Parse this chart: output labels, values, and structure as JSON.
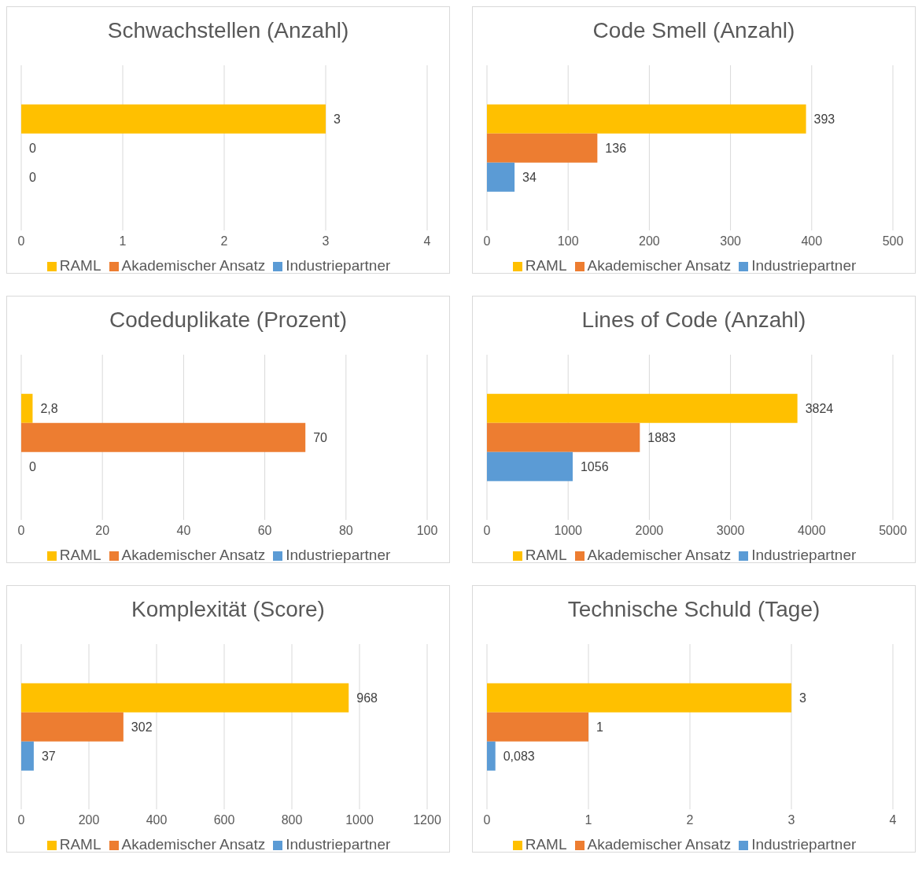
{
  "chart_data": [
    {
      "type": "bar",
      "orientation": "horizontal",
      "title": "Schwachstellen (Anzahl)",
      "categories": [
        null
      ],
      "series": [
        {
          "name": "RAML",
          "color": "#ffc000",
          "values": [
            3
          ],
          "value_labels": [
            "3"
          ]
        },
        {
          "name": "Akademischer Ansatz",
          "color": "#ed7d31",
          "values": [
            0
          ],
          "value_labels": [
            "0"
          ]
        },
        {
          "name": "Industriepartner",
          "color": "#5b9bd5",
          "values": [
            0
          ],
          "value_labels": [
            "0"
          ]
        }
      ],
      "xlim": [
        0,
        4
      ],
      "xticks": [
        0,
        1,
        2,
        3,
        4
      ],
      "grid": "x",
      "legend": "bottom",
      "tick_labels": "x"
    },
    {
      "type": "bar",
      "orientation": "horizontal",
      "title": "Code Smell (Anzahl)",
      "categories": [
        null
      ],
      "series": [
        {
          "name": "RAML",
          "color": "#ffc000",
          "values": [
            393
          ],
          "value_labels": [
            "393"
          ]
        },
        {
          "name": "Akademischer Ansatz",
          "color": "#ed7d31",
          "values": [
            136
          ],
          "value_labels": [
            "136"
          ]
        },
        {
          "name": "Industriepartner",
          "color": "#5b9bd5",
          "values": [
            34
          ],
          "value_labels": [
            "34"
          ]
        }
      ],
      "xlim": [
        0,
        500
      ],
      "xticks": [
        0,
        100,
        200,
        300,
        400,
        500
      ],
      "grid": "x",
      "legend": "bottom",
      "tick_labels": "x"
    },
    {
      "type": "bar",
      "orientation": "horizontal",
      "title": "Codeduplikate (Prozent)",
      "categories": [
        null
      ],
      "series": [
        {
          "name": "RAML",
          "color": "#ffc000",
          "values": [
            2.8
          ],
          "value_labels": [
            "2,8"
          ]
        },
        {
          "name": "Akademischer Ansatz",
          "color": "#ed7d31",
          "values": [
            70
          ],
          "value_labels": [
            "70"
          ]
        },
        {
          "name": "Industriepartner",
          "color": "#5b9bd5",
          "values": [
            0
          ],
          "value_labels": [
            "0"
          ]
        }
      ],
      "xlim": [
        0,
        100
      ],
      "xticks": [
        0,
        20,
        40,
        60,
        80,
        100
      ],
      "grid": "x",
      "legend": "bottom",
      "tick_labels": "x"
    },
    {
      "type": "bar",
      "orientation": "horizontal",
      "title": "Lines of Code (Anzahl)",
      "categories": [
        null
      ],
      "series": [
        {
          "name": "RAML",
          "color": "#ffc000",
          "values": [
            3824
          ],
          "value_labels": [
            "3824"
          ]
        },
        {
          "name": "Akademischer Ansatz",
          "color": "#ed7d31",
          "values": [
            1883
          ],
          "value_labels": [
            "1883"
          ]
        },
        {
          "name": "Industriepartner",
          "color": "#5b9bd5",
          "values": [
            1056
          ],
          "value_labels": [
            "1056"
          ]
        }
      ],
      "xlim": [
        0,
        5000
      ],
      "xticks": [
        0,
        1000,
        2000,
        3000,
        4000,
        5000
      ],
      "grid": "x",
      "legend": "bottom",
      "tick_labels": "x"
    },
    {
      "type": "bar",
      "orientation": "horizontal",
      "title": "Komplexität (Score)",
      "categories": [
        null
      ],
      "series": [
        {
          "name": "RAML",
          "color": "#ffc000",
          "values": [
            968
          ],
          "value_labels": [
            "968"
          ]
        },
        {
          "name": "Akademischer Ansatz",
          "color": "#ed7d31",
          "values": [
            302
          ],
          "value_labels": [
            "302"
          ]
        },
        {
          "name": "Industriepartner",
          "color": "#5b9bd5",
          "values": [
            37
          ],
          "value_labels": [
            "37"
          ]
        }
      ],
      "xlim": [
        0,
        1200
      ],
      "xticks": [
        0,
        200,
        400,
        600,
        800,
        1000,
        1200
      ],
      "grid": "x",
      "legend": "bottom",
      "tick_labels": "x"
    },
    {
      "type": "bar",
      "orientation": "horizontal",
      "title": "Technische Schuld (Tage)",
      "categories": [
        null
      ],
      "series": [
        {
          "name": "RAML",
          "color": "#ffc000",
          "values": [
            3
          ],
          "value_labels": [
            "3"
          ]
        },
        {
          "name": "Akademischer Ansatz",
          "color": "#ed7d31",
          "values": [
            1
          ],
          "value_labels": [
            "1"
          ]
        },
        {
          "name": "Industriepartner",
          "color": "#5b9bd5",
          "values": [
            0.083
          ],
          "value_labels": [
            "0,083"
          ]
        }
      ],
      "xlim": [
        0,
        4
      ],
      "xticks": [
        0,
        1,
        2,
        3,
        4
      ],
      "grid": "x",
      "legend": "bottom",
      "tick_labels": "x"
    }
  ]
}
